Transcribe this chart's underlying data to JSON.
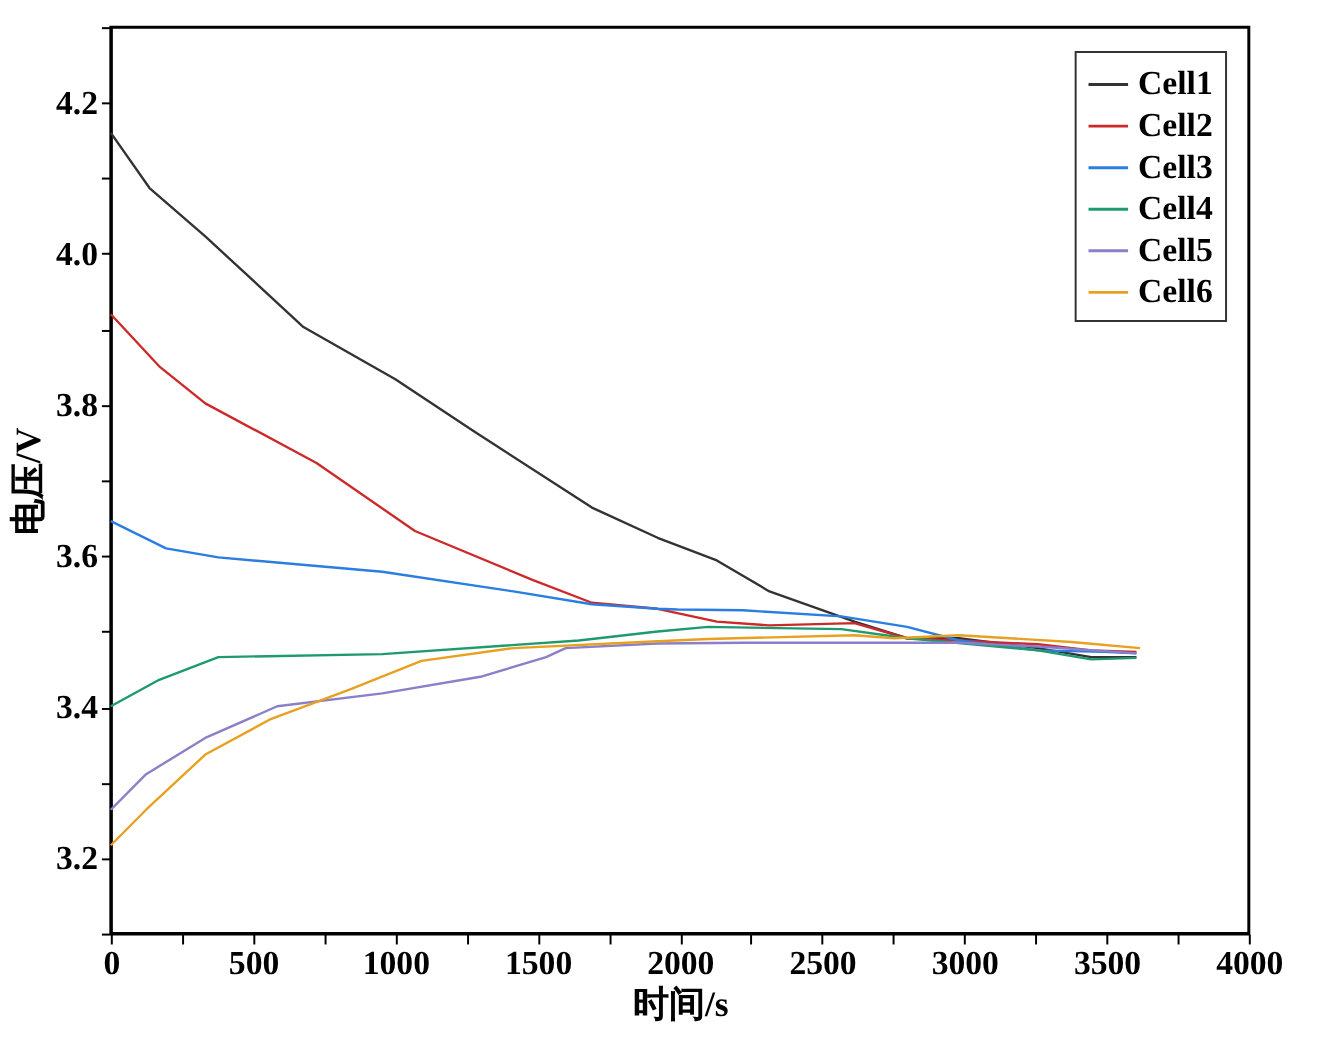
{
  "chart_data": {
    "type": "line",
    "xlabel": "时间/s",
    "ylabel": "电压/V",
    "xlim": [
      0,
      4000
    ],
    "ylim": [
      3.1,
      4.3
    ],
    "xticks": [
      0,
      {
        "value": 250,
        "label": null
      },
      500,
      {
        "value": 750,
        "label": null
      },
      1000,
      {
        "value": 1250,
        "label": null
      },
      1500,
      {
        "value": 1750,
        "label": null
      },
      2000,
      {
        "value": 2250,
        "label": null
      },
      2500,
      {
        "value": 2750,
        "label": null
      },
      3000,
      {
        "value": 3250,
        "label": null
      },
      3500,
      {
        "value": 3750,
        "label": null
      },
      4000
    ],
    "yticks": [
      {
        "value": 3.1,
        "label": null
      },
      3.2,
      {
        "value": 3.3,
        "label": null
      },
      3.4,
      {
        "value": 3.5,
        "label": null
      },
      3.6,
      {
        "value": 3.7,
        "label": null
      },
      3.8,
      {
        "value": 3.9,
        "label": null
      },
      {
        "value": 4.0,
        "label": "4.0"
      },
      {
        "value": 4.1,
        "label": null
      },
      4.2,
      {
        "value": 4.3,
        "label": null
      }
    ],
    "grid": false,
    "legend": "top right",
    "marker": "none",
    "line_style": "solid",
    "series": [
      {
        "name": "Cell1",
        "color": "#333333",
        "x": [
          0,
          136,
          332,
          677,
          1000,
          1276,
          1691,
          1922,
          2130,
          2315,
          2614,
          2799,
          2982,
          3259,
          3446,
          3605
        ],
        "values": [
          4.16,
          4.087,
          4.023,
          3.903,
          3.834,
          3.765,
          3.664,
          3.624,
          3.594,
          3.553,
          3.513,
          3.491,
          3.491,
          3.478,
          3.466,
          3.466
        ]
      },
      {
        "name": "Cell2",
        "color": "#cc2a2a",
        "x": [
          0,
          170,
          332,
          723,
          1069,
          1484,
          1691,
          1922,
          2130,
          2315,
          2614,
          2799,
          2982,
          3259,
          3446,
          3605
        ],
        "values": [
          3.92,
          3.851,
          3.802,
          3.723,
          3.633,
          3.568,
          3.538,
          3.53,
          3.513,
          3.508,
          3.511,
          3.491,
          3.488,
          3.483,
          3.475,
          3.473
        ]
      },
      {
        "name": "Cell3",
        "color": "#2a7de1",
        "x": [
          0,
          194,
          378,
          954,
          1415,
          1691,
          1922,
          1992,
          2222,
          2568,
          2799,
          2982,
          3259,
          3490,
          3605
        ],
        "values": [
          3.646,
          3.61,
          3.598,
          3.579,
          3.553,
          3.536,
          3.53,
          3.529,
          3.528,
          3.52,
          3.506,
          3.488,
          3.475,
          3.473,
          3.471
        ]
      },
      {
        "name": "Cell4",
        "color": "#1f9a6f",
        "x": [
          0,
          170,
          378,
          954,
          1645,
          1922,
          2100,
          2568,
          2799,
          3259,
          3446,
          3605
        ],
        "values": [
          3.401,
          3.436,
          3.466,
          3.47,
          3.488,
          3.5,
          3.506,
          3.503,
          3.491,
          3.475,
          3.463,
          3.465
        ]
      },
      {
        "name": "Cell5",
        "color": "#8a7fc8",
        "x": [
          0,
          124,
          332,
          585,
          954,
          1299,
          1530,
          1599,
          1922,
          2222,
          2568,
          2982,
          3259,
          3605
        ],
        "values": [
          3.264,
          3.311,
          3.359,
          3.401,
          3.418,
          3.44,
          3.466,
          3.478,
          3.484,
          3.485,
          3.485,
          3.485,
          3.48,
          3.471
        ]
      },
      {
        "name": "Cell6",
        "color": "#e8a020",
        "x": [
          0,
          124,
          332,
          562,
          839,
          1092,
          1415,
          1922,
          2100,
          2614,
          2753,
          2982,
          3376,
          3618
        ],
        "values": [
          3.217,
          3.264,
          3.337,
          3.384,
          3.423,
          3.461,
          3.478,
          3.487,
          3.49,
          3.495,
          3.491,
          3.495,
          3.486,
          3.478
        ]
      }
    ]
  }
}
